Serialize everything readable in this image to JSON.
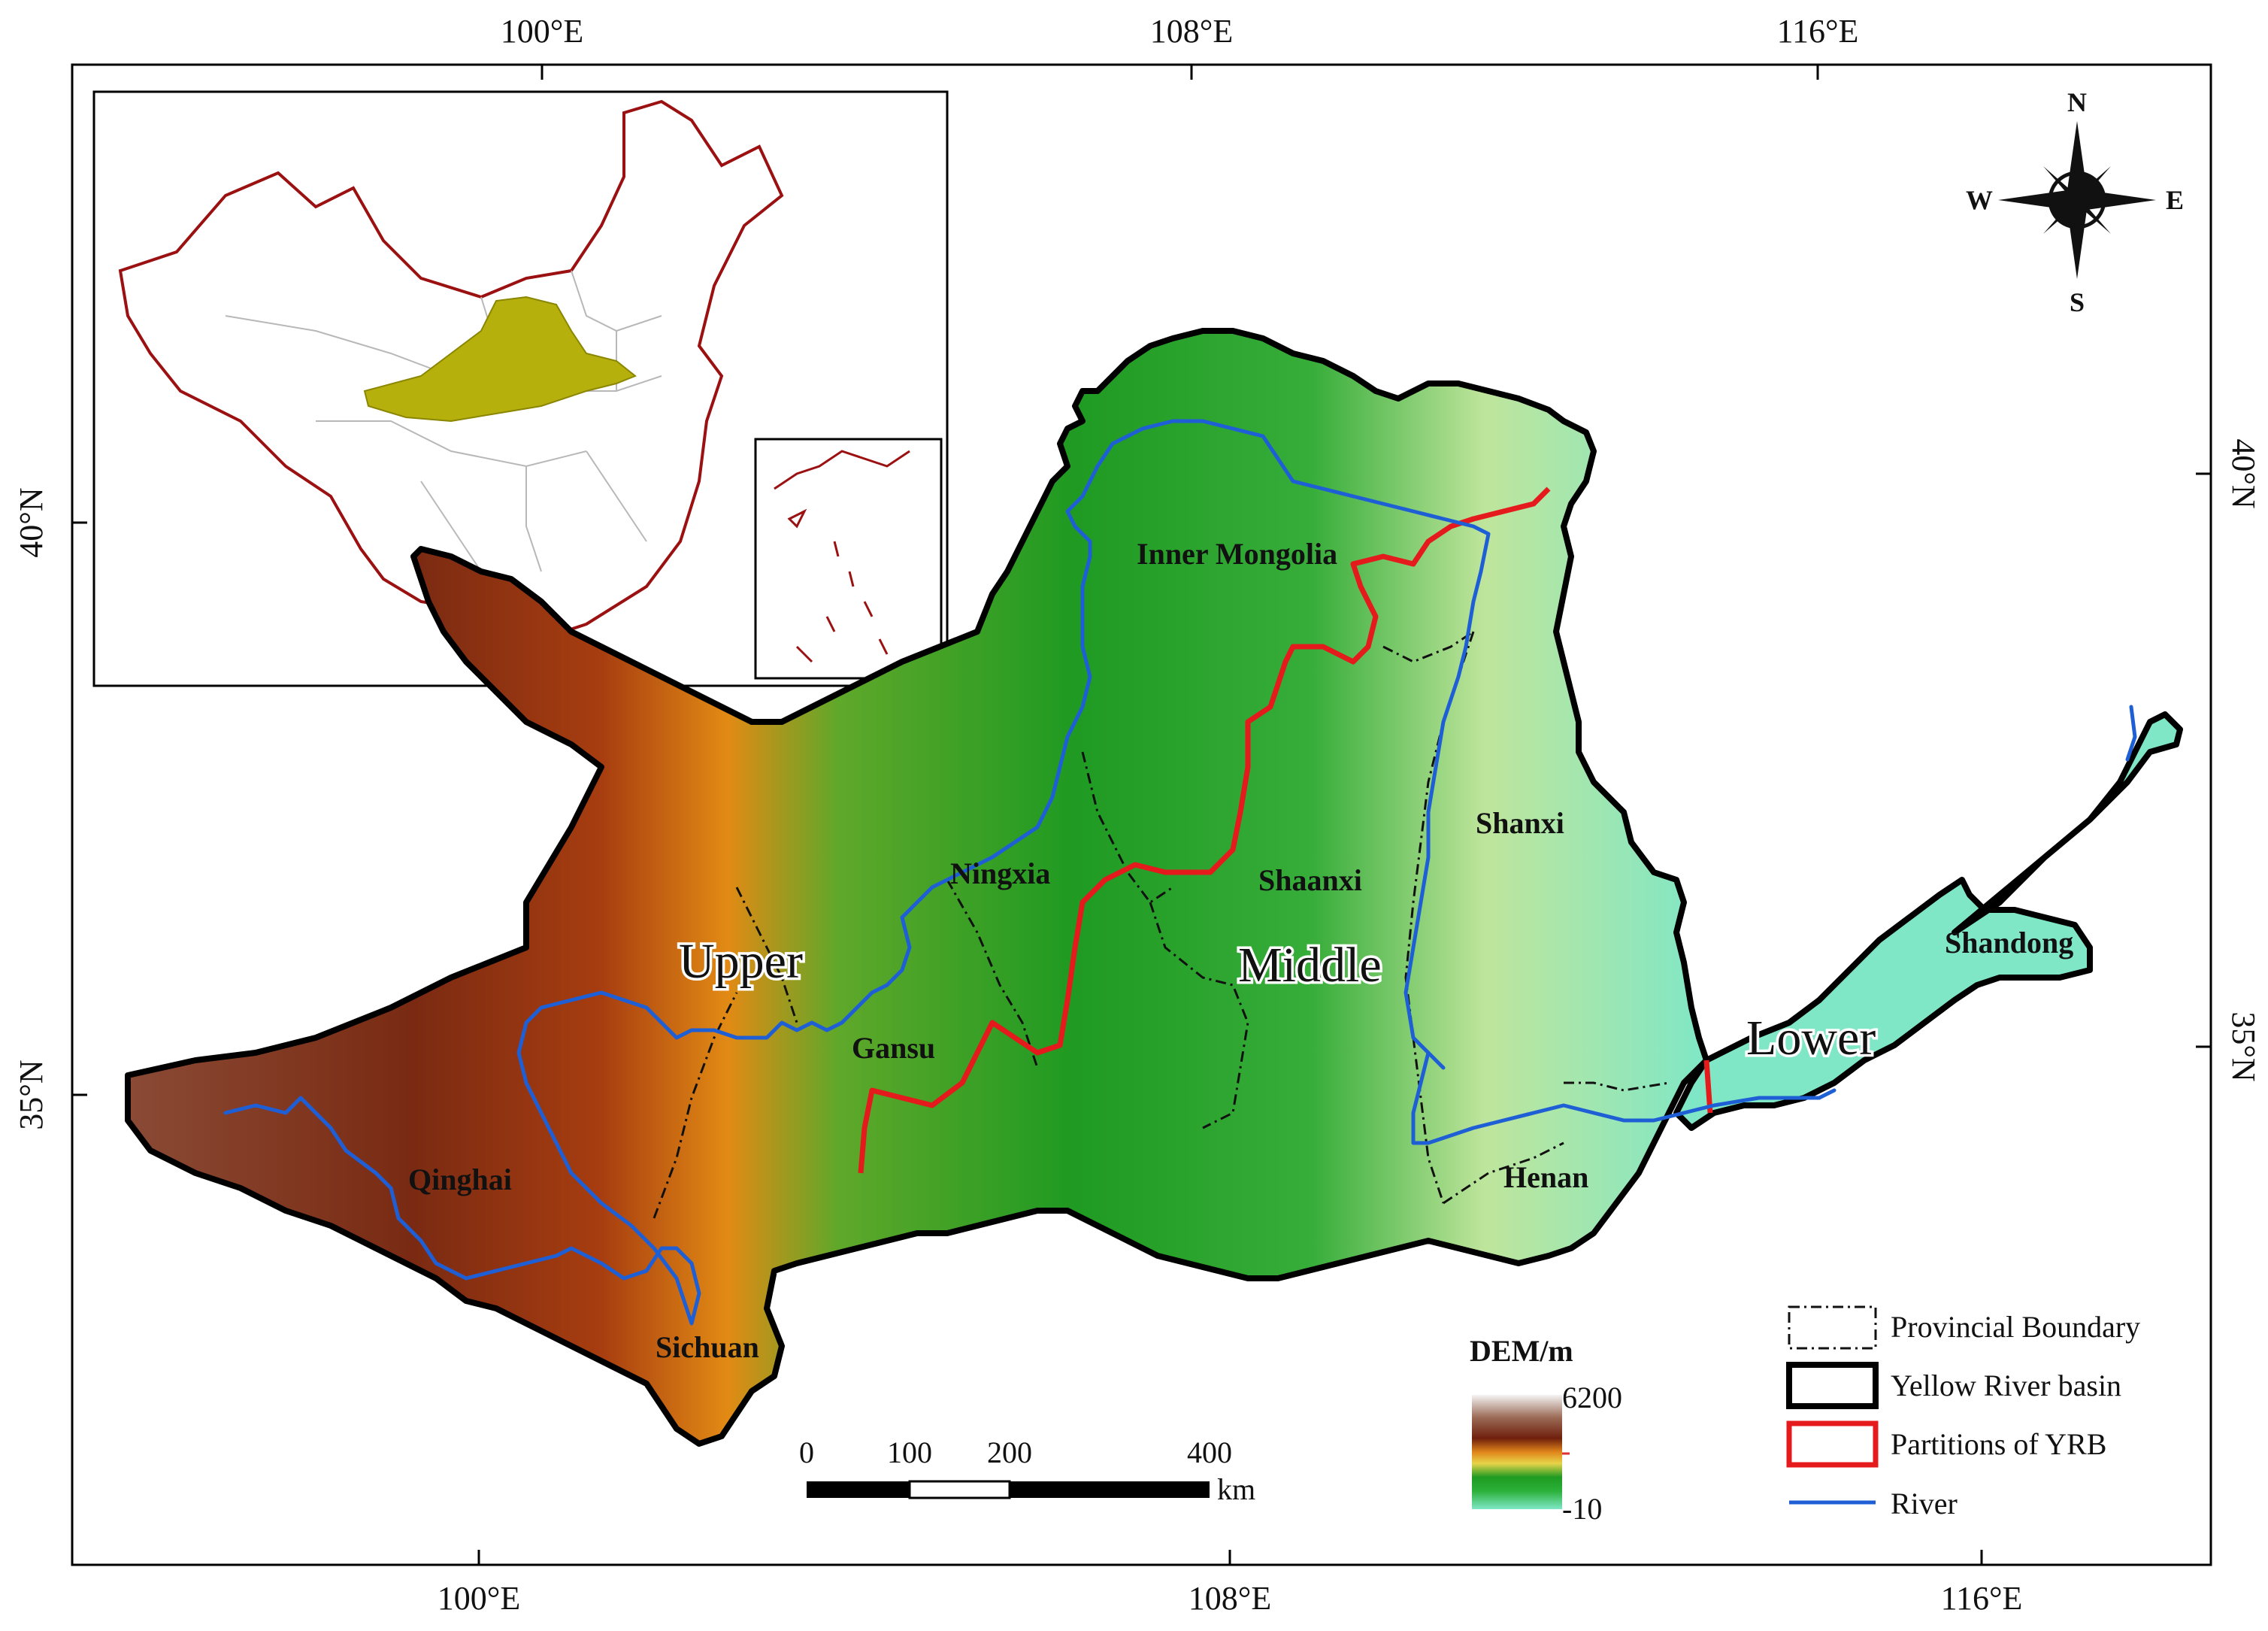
{
  "map": {
    "axes": {
      "top": [
        "100°E",
        "108°E",
        "116°E"
      ],
      "bottom": [
        "100°E",
        "108°E",
        "116°E"
      ],
      "left": [
        "40°N",
        "35°N"
      ],
      "right": [
        "40°N",
        "35°N"
      ]
    },
    "compass": {
      "n": "N",
      "s": "S",
      "e": "E",
      "w": "W"
    },
    "provinces": [
      "Inner Mongolia",
      "Ningxia",
      "Shaanxi",
      "Shanxi",
      "Shandong",
      "Gansu",
      "Qinghai",
      "Sichuan",
      "Henan"
    ],
    "partitions": [
      "Upper",
      "Middle",
      "Lower"
    ],
    "scale_bar": {
      "labels": [
        "0",
        "100",
        "200",
        "400"
      ],
      "unit": "km"
    },
    "dem_legend": {
      "title": "DEM/m",
      "max": "6200",
      "min": "-10"
    },
    "legend": [
      {
        "label": "Provincial Boundary",
        "symbol": "dashdot-box"
      },
      {
        "label": "Yellow River basin",
        "symbol": "black-box"
      },
      {
        "label": "Partitions of YRB",
        "symbol": "red-box"
      },
      {
        "label": "River",
        "symbol": "blue-line"
      }
    ],
    "colors": {
      "basin_outline": "#000000",
      "partition_line": "#e41a1c",
      "river": "#1f5fd6",
      "inset_border": "#9b1111",
      "inset_highlight": "#b5b00c",
      "dem_high": "#f2f2f2",
      "dem_brown": "#7a2a12",
      "dem_orange": "#e28a14",
      "dem_green": "#1e9a1e",
      "dem_low": "#7fe7c6"
    }
  }
}
